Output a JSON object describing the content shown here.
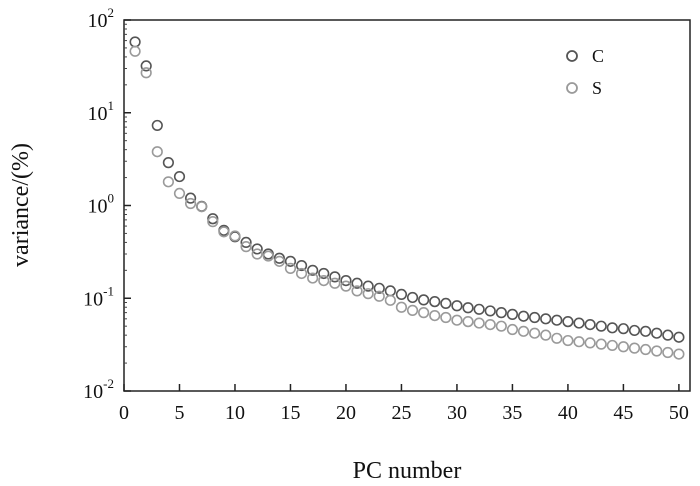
{
  "chart_data": {
    "type": "scatter",
    "title": "",
    "xlabel": "PC number",
    "ylabel": "variance/(%)",
    "xlim": [
      0,
      51
    ],
    "ylim": [
      0.01,
      100
    ],
    "yscale": "log",
    "grid": false,
    "legend_position": "top-right",
    "x_ticks": [
      0,
      5,
      10,
      15,
      20,
      25,
      30,
      35,
      40,
      45,
      50
    ],
    "y_ticks": [
      {
        "base": "10",
        "exp": "-2"
      },
      {
        "base": "10",
        "exp": "-1"
      },
      {
        "base": "10",
        "exp": "0"
      },
      {
        "base": "10",
        "exp": "1"
      },
      {
        "base": "10",
        "exp": "2"
      }
    ],
    "series": [
      {
        "name": "C",
        "color": "#555555",
        "x": [
          1,
          2,
          3,
          4,
          5,
          6,
          7,
          8,
          9,
          10,
          11,
          12,
          13,
          14,
          15,
          16,
          17,
          18,
          19,
          20,
          21,
          22,
          23,
          24,
          25,
          26,
          27,
          28,
          29,
          30,
          31,
          32,
          33,
          34,
          35,
          36,
          37,
          38,
          39,
          40,
          41,
          42,
          43,
          44,
          45,
          46,
          47,
          48,
          49,
          50
        ],
        "y": [
          58,
          32,
          7.3,
          2.9,
          2.05,
          1.2,
          0.98,
          0.72,
          0.54,
          0.46,
          0.4,
          0.34,
          0.3,
          0.27,
          0.25,
          0.225,
          0.2,
          0.185,
          0.17,
          0.155,
          0.145,
          0.135,
          0.128,
          0.12,
          0.11,
          0.102,
          0.096,
          0.092,
          0.088,
          0.083,
          0.079,
          0.076,
          0.073,
          0.07,
          0.067,
          0.064,
          0.062,
          0.06,
          0.058,
          0.056,
          0.054,
          0.052,
          0.05,
          0.048,
          0.047,
          0.045,
          0.044,
          0.042,
          0.04,
          0.038
        ]
      },
      {
        "name": "S",
        "color": "#9a9a9a",
        "x": [
          1,
          2,
          3,
          4,
          5,
          6,
          7,
          8,
          9,
          10,
          11,
          12,
          13,
          14,
          15,
          16,
          17,
          18,
          19,
          20,
          21,
          22,
          23,
          24,
          25,
          26,
          27,
          28,
          29,
          30,
          31,
          32,
          33,
          34,
          35,
          36,
          37,
          38,
          39,
          40,
          41,
          42,
          43,
          44,
          45,
          46,
          47,
          48,
          49,
          50
        ],
        "y": [
          46,
          27,
          3.8,
          1.8,
          1.35,
          1.05,
          0.97,
          0.67,
          0.52,
          0.47,
          0.36,
          0.3,
          0.285,
          0.25,
          0.21,
          0.185,
          0.165,
          0.155,
          0.145,
          0.135,
          0.12,
          0.112,
          0.105,
          0.095,
          0.08,
          0.074,
          0.07,
          0.065,
          0.062,
          0.058,
          0.056,
          0.054,
          0.052,
          0.05,
          0.046,
          0.044,
          0.042,
          0.04,
          0.037,
          0.035,
          0.034,
          0.033,
          0.032,
          0.031,
          0.03,
          0.029,
          0.028,
          0.027,
          0.026,
          0.025
        ]
      }
    ]
  }
}
